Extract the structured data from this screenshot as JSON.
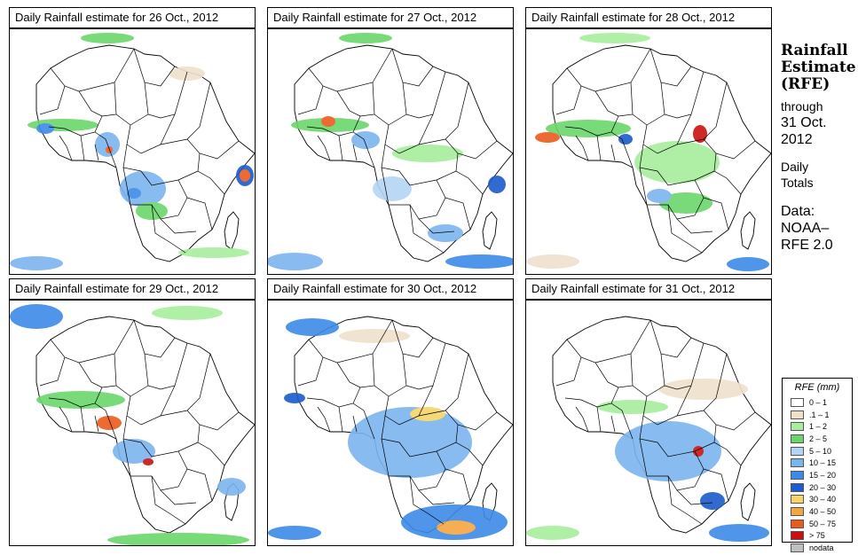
{
  "panels": [
    {
      "title": "Daily Rainfall estimate for  26 Oct., 2012"
    },
    {
      "title": "Daily Rainfall estimate for  27 Oct., 2012"
    },
    {
      "title": "Daily Rainfall estimate for  28 Oct., 2012"
    },
    {
      "title": "Daily Rainfall estimate for  29 Oct., 2012"
    },
    {
      "title": "Daily Rainfall estimate for  30 Oct., 2012"
    },
    {
      "title": "Daily Rainfall estimate for  31 Oct., 2012"
    }
  ],
  "side": {
    "title_line1": "Rainfall",
    "title_line2": "Estimate",
    "title_line3": "(RFE)",
    "through": "through",
    "date": "31 Oct.",
    "year": "2012",
    "daily": "Daily",
    "totals": "Totals",
    "data_label": "Data:",
    "source1": "NOAA–",
    "source2": "RFE 2.0"
  },
  "legend": {
    "title": "RFE (mm)",
    "items": [
      {
        "label": "0 – 1",
        "color": "#ffffff"
      },
      {
        "label": ".1 – 1",
        "color": "#efe0cc"
      },
      {
        "label": "1 – 2",
        "color": "#a6ee9c"
      },
      {
        "label": "2 – 5",
        "color": "#6ad66a"
      },
      {
        "label": "5 – 10",
        "color": "#b4d4f4"
      },
      {
        "label": "10 – 15",
        "color": "#7cb4ee"
      },
      {
        "label": "15 – 20",
        "color": "#3c8ae8"
      },
      {
        "label": "20 – 30",
        "color": "#1c5ccc"
      },
      {
        "label": "30 – 40",
        "color": "#f6d46a"
      },
      {
        "label": "40 – 50",
        "color": "#f4a640"
      },
      {
        "label": "50 – 75",
        "color": "#ec5a1c"
      },
      {
        "label": "> 75",
        "color": "#cc1010"
      },
      {
        "label": "nodata",
        "color": "#c0c0c0"
      }
    ]
  }
}
